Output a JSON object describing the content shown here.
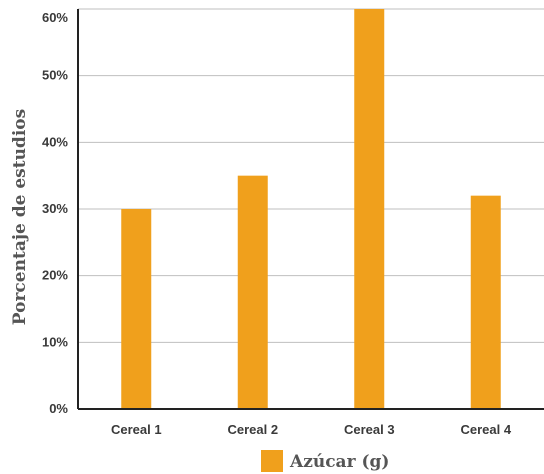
{
  "chart_data": {
    "type": "bar",
    "categories": [
      "Cereal 1",
      "Cereal 2",
      "Cereal 3",
      "Cereal 4"
    ],
    "series": [
      {
        "name": "Azúcar (g)",
        "values": [
          30,
          35,
          60,
          32
        ],
        "color": "#f0a01c"
      }
    ],
    "yticks": [
      "0%",
      "10%",
      "20%",
      "30%",
      "40%",
      "50%",
      "60%"
    ],
    "ylabel": "Porcentaje de estudios",
    "xlabel": "",
    "ylim": [
      0,
      60
    ],
    "grid": true,
    "legend_position": "bottom-center",
    "colors": {
      "bar": "#f0a01c",
      "grid": "#bfbfbf",
      "axis": "#222222",
      "text": "#3a3a3a"
    }
  }
}
